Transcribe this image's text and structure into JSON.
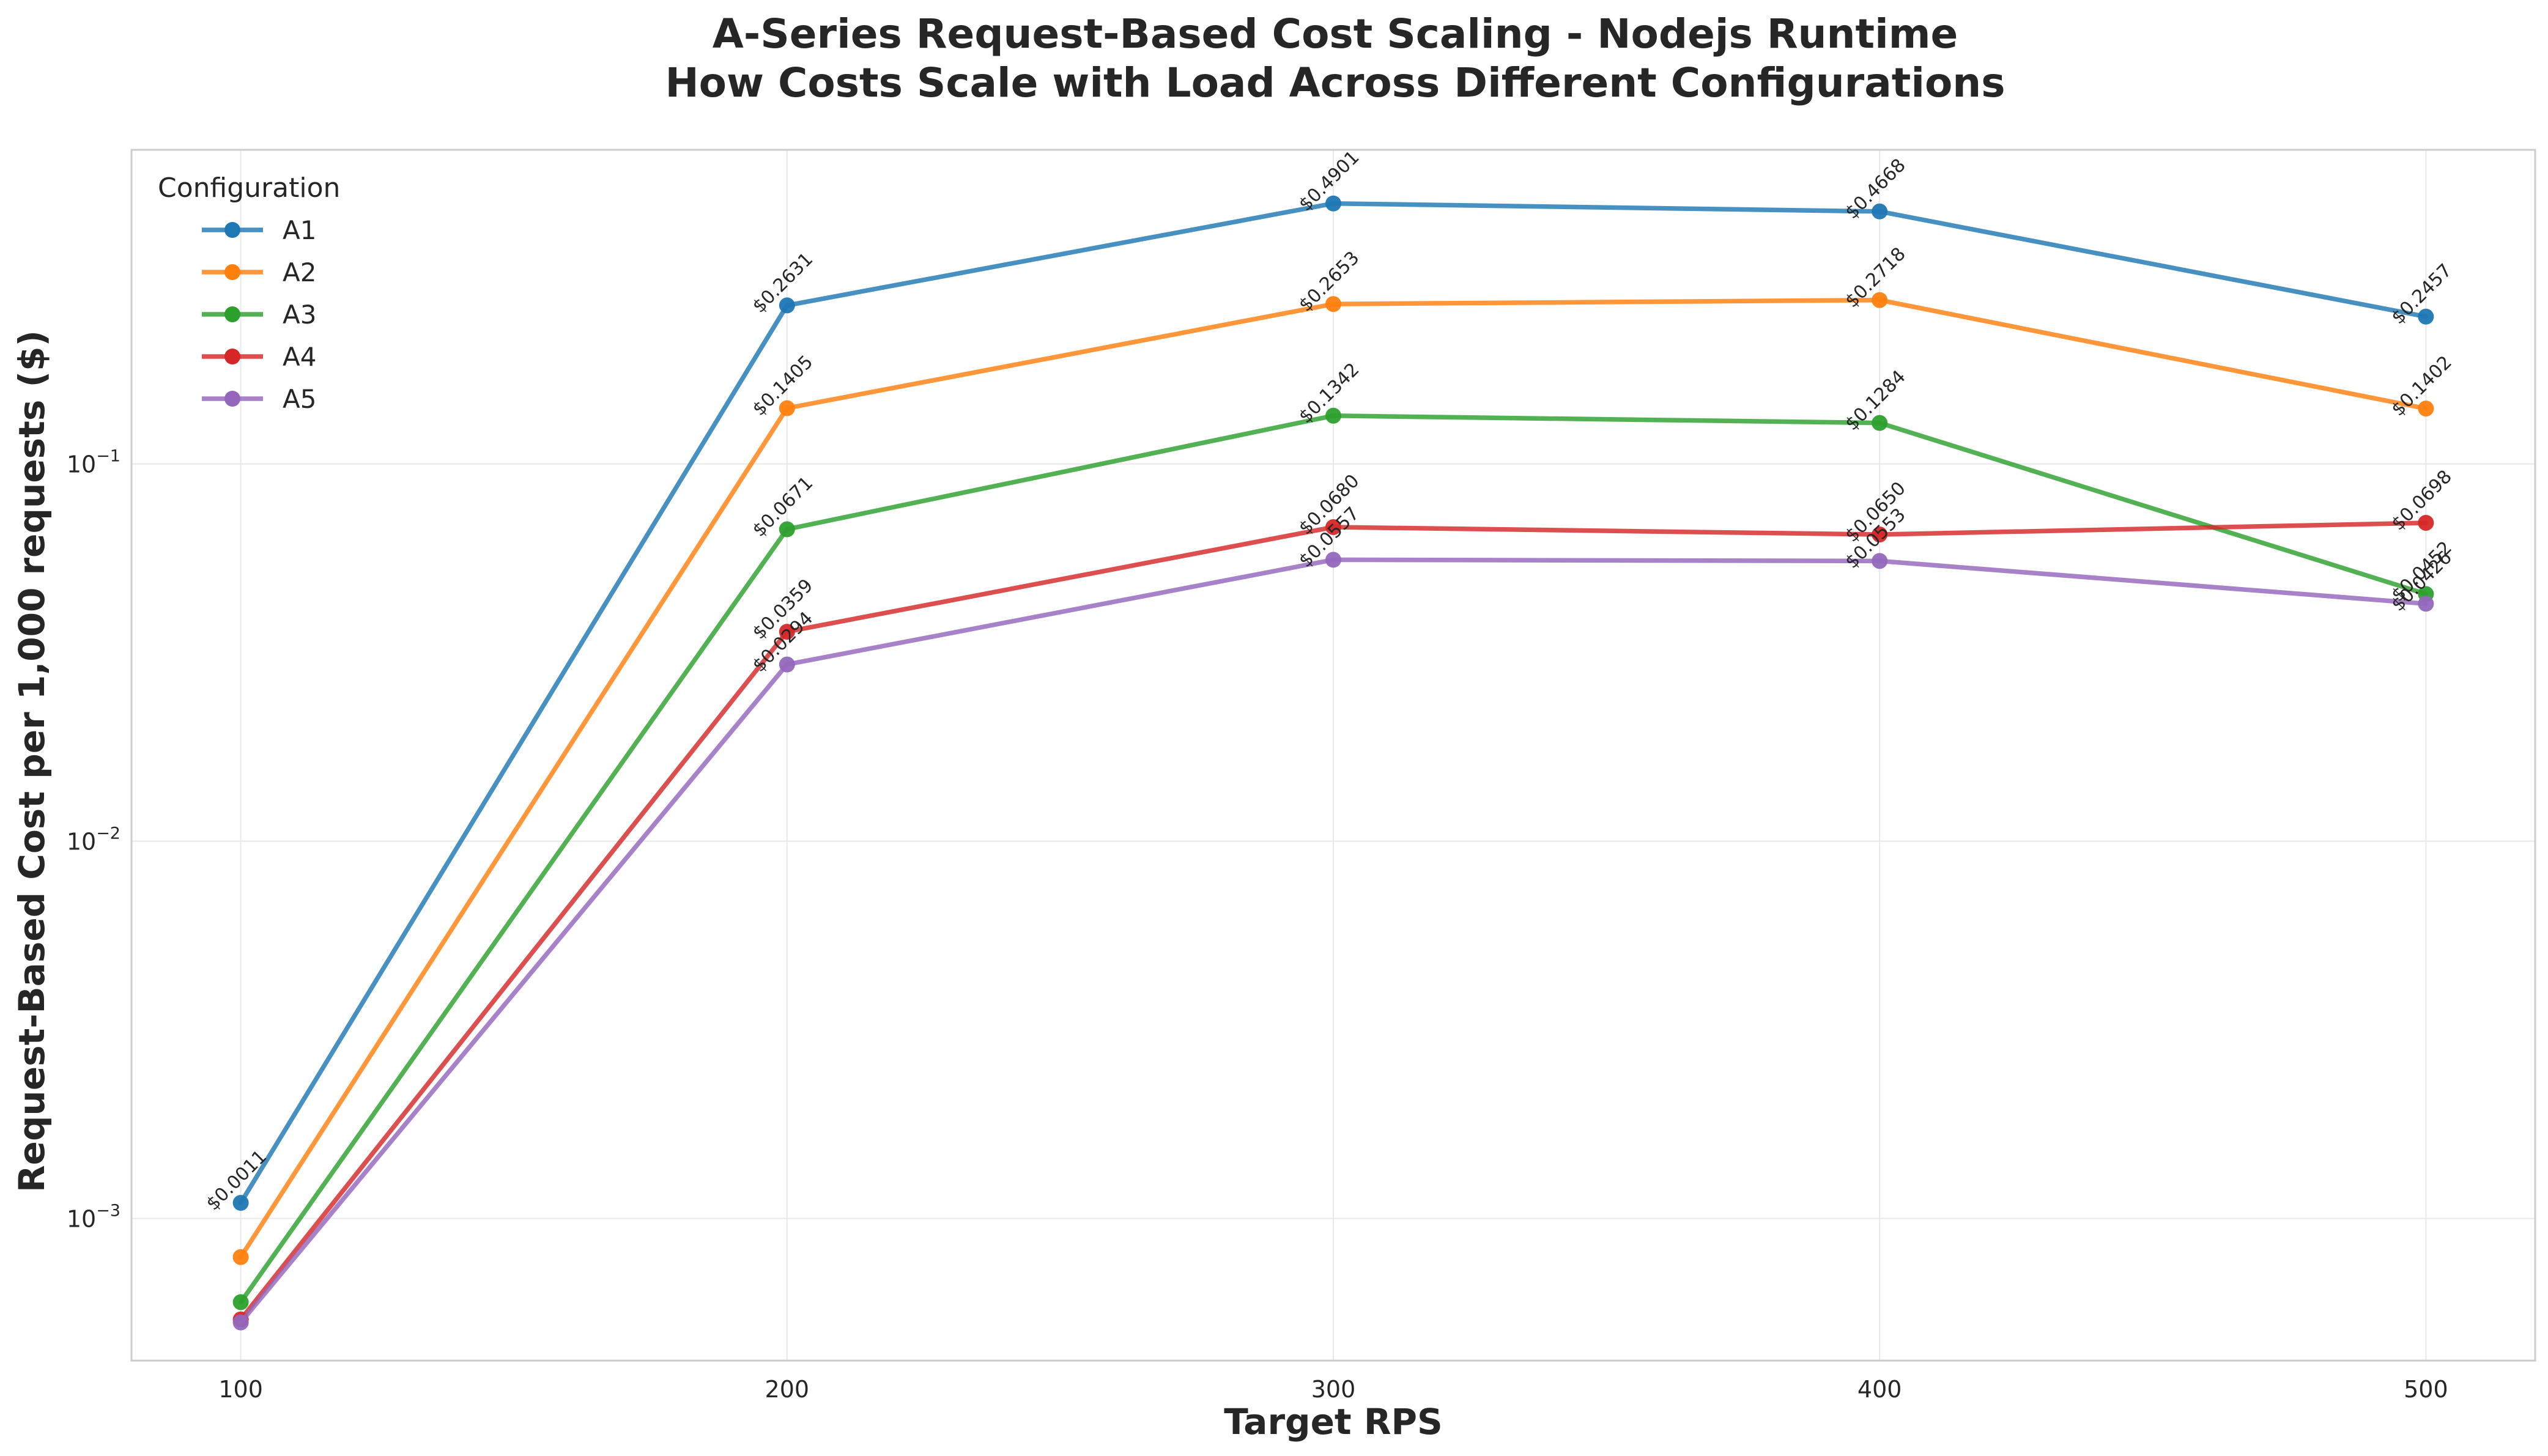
{
  "chart_data": {
    "type": "line",
    "title": "A-Series Request-Based Cost Scaling - Nodejs Runtime",
    "subtitle": "How Costs Scale with Load Across Different Configurations",
    "xlabel": "Target RPS",
    "ylabel": "Request-Based Cost per 1,000 requests ($)",
    "x": [
      100,
      200,
      300,
      400,
      500
    ],
    "x_ticks": [
      "100",
      "200",
      "300",
      "400",
      "500"
    ],
    "xlim": [
      80,
      520
    ],
    "y_scale": "log",
    "ylim": [
      0.00042,
      0.68
    ],
    "y_ticks": [
      {
        "value": 0.001,
        "base": "10",
        "exp": "−3"
      },
      {
        "value": 0.01,
        "base": "10",
        "exp": "−2"
      },
      {
        "value": 0.1,
        "base": "10",
        "exp": "−1"
      }
    ],
    "grid": true,
    "legend": {
      "title": "Configuration",
      "placement": "top-left"
    },
    "series": [
      {
        "name": "A1",
        "color": "#1f77b4",
        "values": [
          0.0011,
          0.2631,
          0.4901,
          0.4668,
          0.2457
        ],
        "labels": [
          "$0.0011",
          "$0.2631",
          "$0.4901",
          "$0.4668",
          "$0.2457"
        ]
      },
      {
        "name": "A2",
        "color": "#ff7f0e",
        "values": [
          0.00079,
          0.1405,
          0.2653,
          0.2718,
          0.1402
        ],
        "labels": [
          "",
          "$0.1405",
          "$0.2653",
          "$0.2718",
          "$0.1402"
        ]
      },
      {
        "name": "A3",
        "color": "#2ca02c",
        "values": [
          0.0006,
          0.0671,
          0.1342,
          0.1284,
          0.0452
        ],
        "labels": [
          "",
          "$0.0671",
          "$0.1342",
          "$0.1284",
          "$0.0452"
        ]
      },
      {
        "name": "A4",
        "color": "#d62728",
        "values": [
          0.00054,
          0.0359,
          0.068,
          0.065,
          0.0698
        ],
        "labels": [
          "",
          "$0.0359",
          "$0.0680",
          "$0.0650",
          "$0.0698"
        ]
      },
      {
        "name": "A5",
        "color": "#9467bd",
        "values": [
          0.00053,
          0.0294,
          0.0557,
          0.0553,
          0.0426
        ],
        "labels": [
          "",
          "$0.0294",
          "$0.0557",
          "$0.0553",
          "$0.0426"
        ]
      }
    ]
  }
}
